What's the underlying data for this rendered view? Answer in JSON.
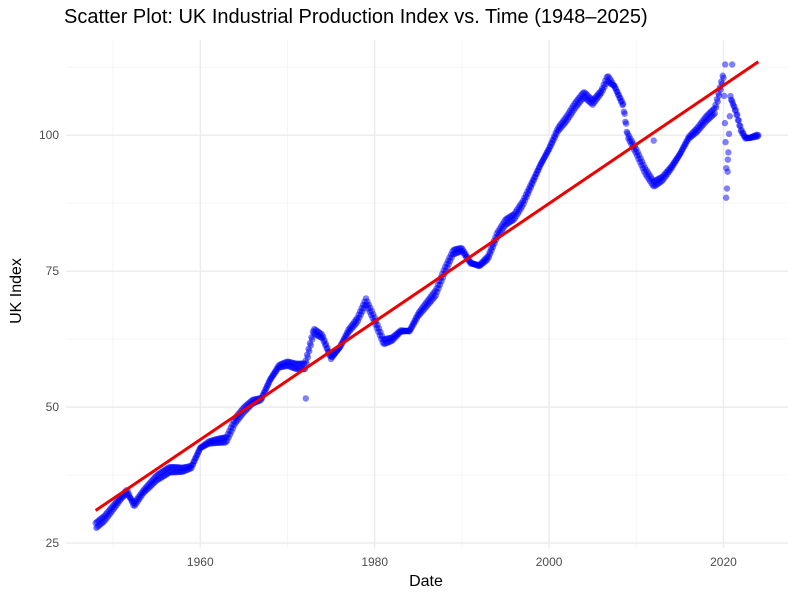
{
  "chart_data": {
    "type": "scatter",
    "title": "Scatter Plot: UK Industrial Production Index vs. Time (1948–2025)",
    "xlabel": "Date",
    "ylabel": "UK Index",
    "xlim": [
      1944.6,
      2027.4
    ],
    "ylim": [
      24.1,
      117.5
    ],
    "xticks": [
      1960,
      1980,
      2000,
      2020
    ],
    "yticks": [
      25,
      50,
      75,
      100
    ],
    "grid": true,
    "legend": "none",
    "colors": {
      "points": "#0000ff",
      "trend": "#ee0000",
      "grid_major": "#ebebeb",
      "grid_minor": "#f5f5f5"
    },
    "series": [
      {
        "values_anchors": [
          [
            1948.0,
            28.2
          ],
          [
            1949.0,
            29.5
          ],
          [
            1950.0,
            31.5
          ],
          [
            1951.0,
            33.5
          ],
          [
            1951.6,
            34.5
          ],
          [
            1952.4,
            32.0
          ],
          [
            1953.5,
            34.5
          ],
          [
            1955.0,
            37.0
          ],
          [
            1956.5,
            38.5
          ],
          [
            1958.0,
            38.5
          ],
          [
            1959.0,
            39.0
          ],
          [
            1960.0,
            42.5
          ],
          [
            1961.0,
            43.5
          ],
          [
            1962.0,
            43.8
          ],
          [
            1963.0,
            44.0
          ],
          [
            1964.0,
            47.5
          ],
          [
            1965.0,
            49.5
          ],
          [
            1966.0,
            51.0
          ],
          [
            1967.0,
            51.5
          ],
          [
            1968.0,
            55.0
          ],
          [
            1969.0,
            57.5
          ],
          [
            1970.0,
            58.0
          ],
          [
            1971.0,
            57.5
          ],
          [
            1972.0,
            57.5
          ],
          [
            1973.0,
            64.0
          ],
          [
            1974.0,
            63.0
          ],
          [
            1975.0,
            59.0
          ],
          [
            1976.0,
            61.0
          ],
          [
            1977.0,
            64.0
          ],
          [
            1978.0,
            66.0
          ],
          [
            1979.0,
            69.5
          ],
          [
            1980.0,
            66.0
          ],
          [
            1981.0,
            62.0
          ],
          [
            1982.0,
            62.5
          ],
          [
            1983.0,
            64.0
          ],
          [
            1984.0,
            64.0
          ],
          [
            1985.0,
            67.0
          ],
          [
            1986.0,
            69.0
          ],
          [
            1987.0,
            71.0
          ],
          [
            1988.0,
            75.0
          ],
          [
            1989.0,
            78.5
          ],
          [
            1990.0,
            79.0
          ],
          [
            1991.0,
            76.5
          ],
          [
            1992.0,
            76.0
          ],
          [
            1993.0,
            77.5
          ],
          [
            1994.0,
            81.5
          ],
          [
            1995.0,
            84.0
          ],
          [
            1996.0,
            85.0
          ],
          [
            1997.0,
            87.5
          ],
          [
            1998.0,
            91.0
          ],
          [
            1999.0,
            94.5
          ],
          [
            2000.0,
            97.5
          ],
          [
            2001.0,
            101.0
          ],
          [
            2002.0,
            103.0
          ],
          [
            2003.0,
            105.5
          ],
          [
            2004.0,
            107.5
          ],
          [
            2005.0,
            106.0
          ],
          [
            2006.0,
            108.0
          ],
          [
            2006.7,
            110.5
          ],
          [
            2007.5,
            109.0
          ],
          [
            2008.5,
            105.5
          ],
          [
            2009.0,
            100.0
          ],
          [
            2010.0,
            97.0
          ],
          [
            2011.0,
            93.5
          ],
          [
            2012.0,
            91.0
          ],
          [
            2013.0,
            92.0
          ],
          [
            2014.0,
            94.0
          ],
          [
            2015.0,
            96.5
          ],
          [
            2016.0,
            99.5
          ],
          [
            2017.0,
            101.0
          ],
          [
            2018.0,
            103.0
          ],
          [
            2019.0,
            104.5
          ],
          [
            2020.0,
            111.0
          ],
          [
            2020.4,
            90.0
          ],
          [
            2020.8,
            107.0
          ],
          [
            2021.5,
            104.0
          ],
          [
            2022.0,
            101.0
          ],
          [
            2022.5,
            99.5
          ],
          [
            2023.0,
            99.5
          ],
          [
            2024.0,
            100.0
          ]
        ]
      }
    ],
    "outliers": [
      [
        1972.1,
        51.6
      ],
      [
        2012.0,
        99.0
      ],
      [
        2020.3,
        88.5
      ],
      [
        2020.5,
        95.5
      ],
      [
        2020.2,
        113.0
      ],
      [
        2021.0,
        113.0
      ]
    ],
    "trend_line": {
      "x": [
        1948.0,
        2024.0
      ],
      "y": [
        31.0,
        113.5
      ]
    }
  }
}
